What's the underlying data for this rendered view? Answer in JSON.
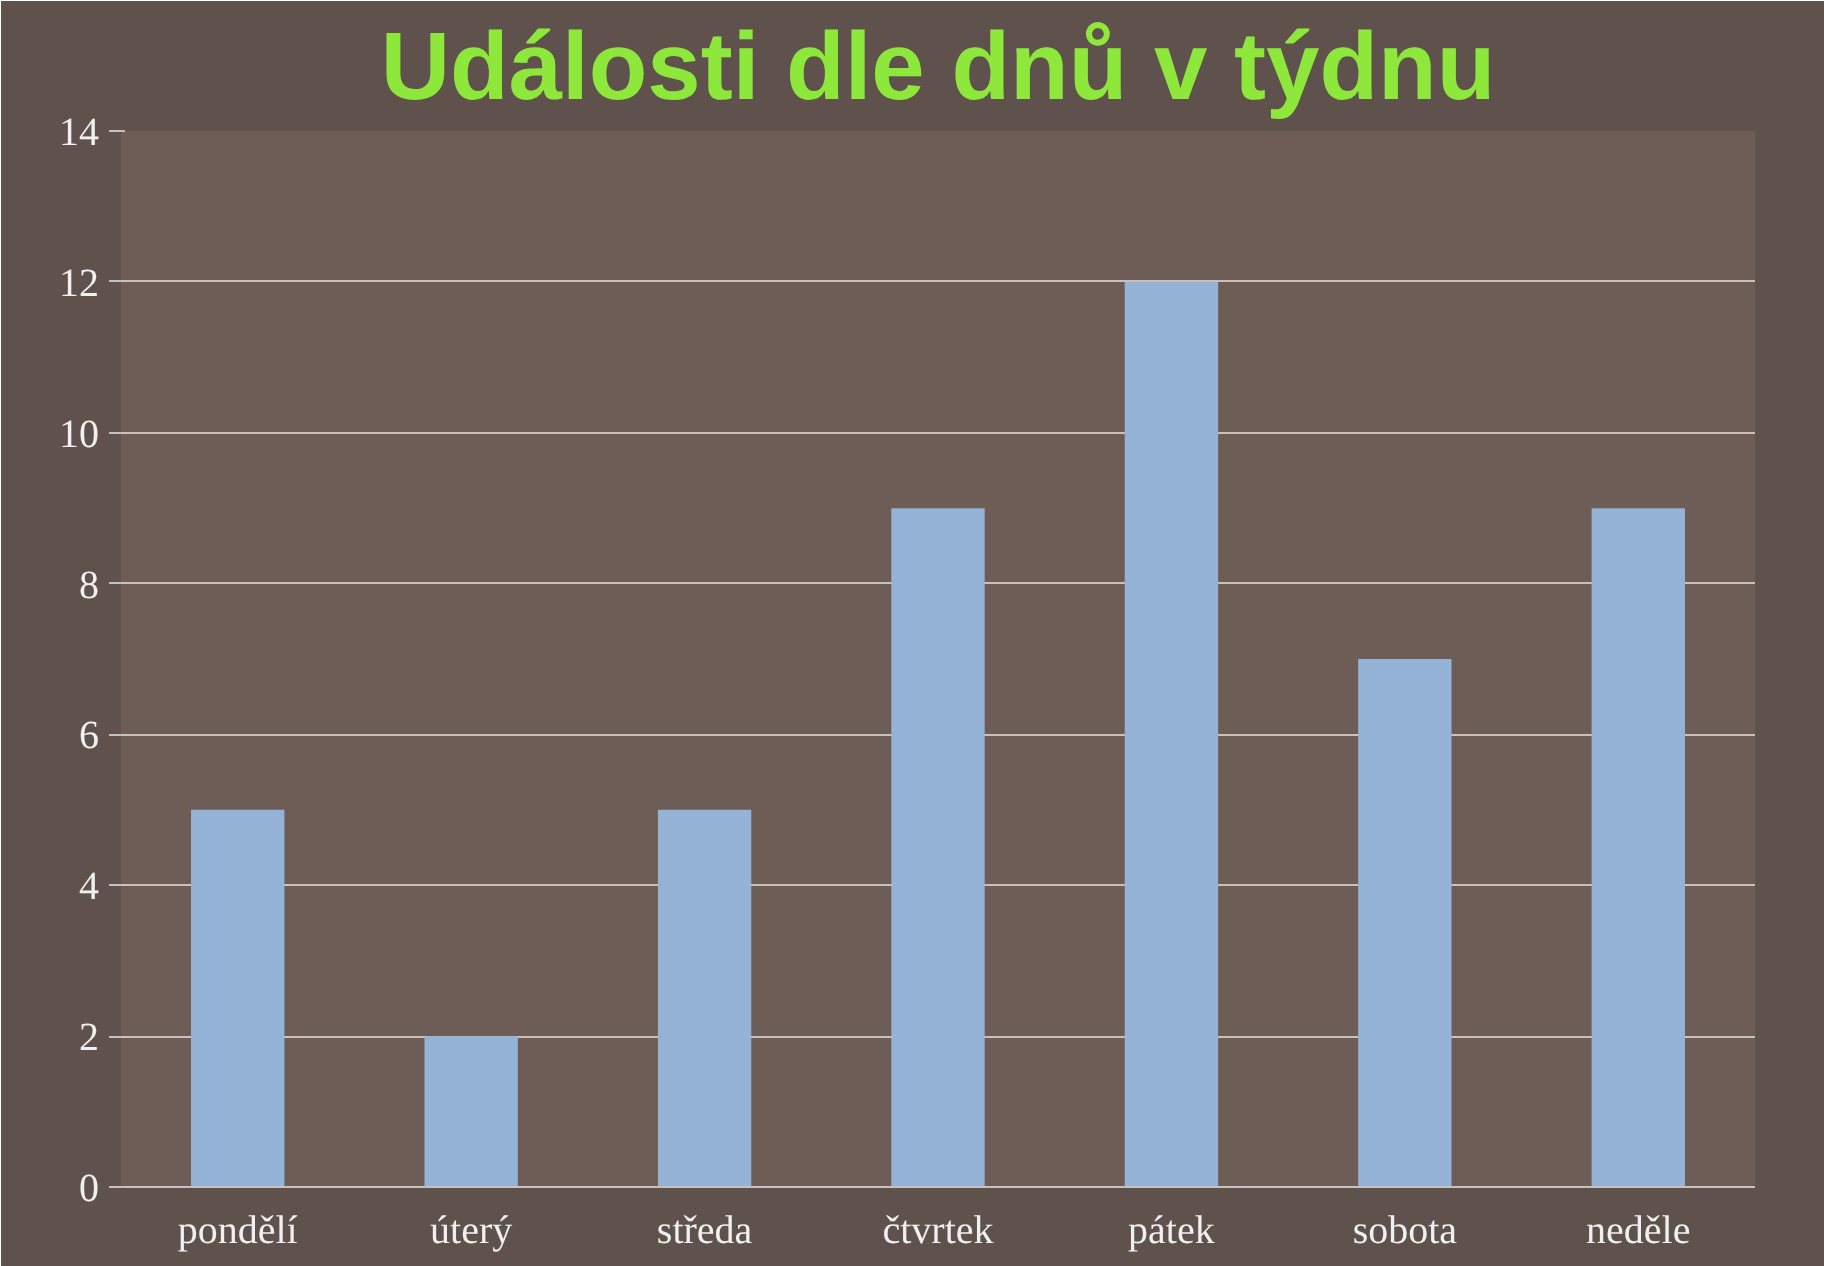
{
  "chart_data": {
    "type": "bar",
    "title": "Události dle dnů v týdnu",
    "categories": [
      "pondělí",
      "úterý",
      "středa",
      "čtvrtek",
      "pátek",
      "sobota",
      "neděle"
    ],
    "values": [
      5,
      2,
      5,
      9,
      12,
      7,
      9
    ],
    "color": "#95b3d7",
    "ylim": [
      0,
      14
    ],
    "yticks": [
      0,
      2,
      4,
      6,
      8,
      10,
      12,
      14
    ],
    "grid": "y"
  }
}
